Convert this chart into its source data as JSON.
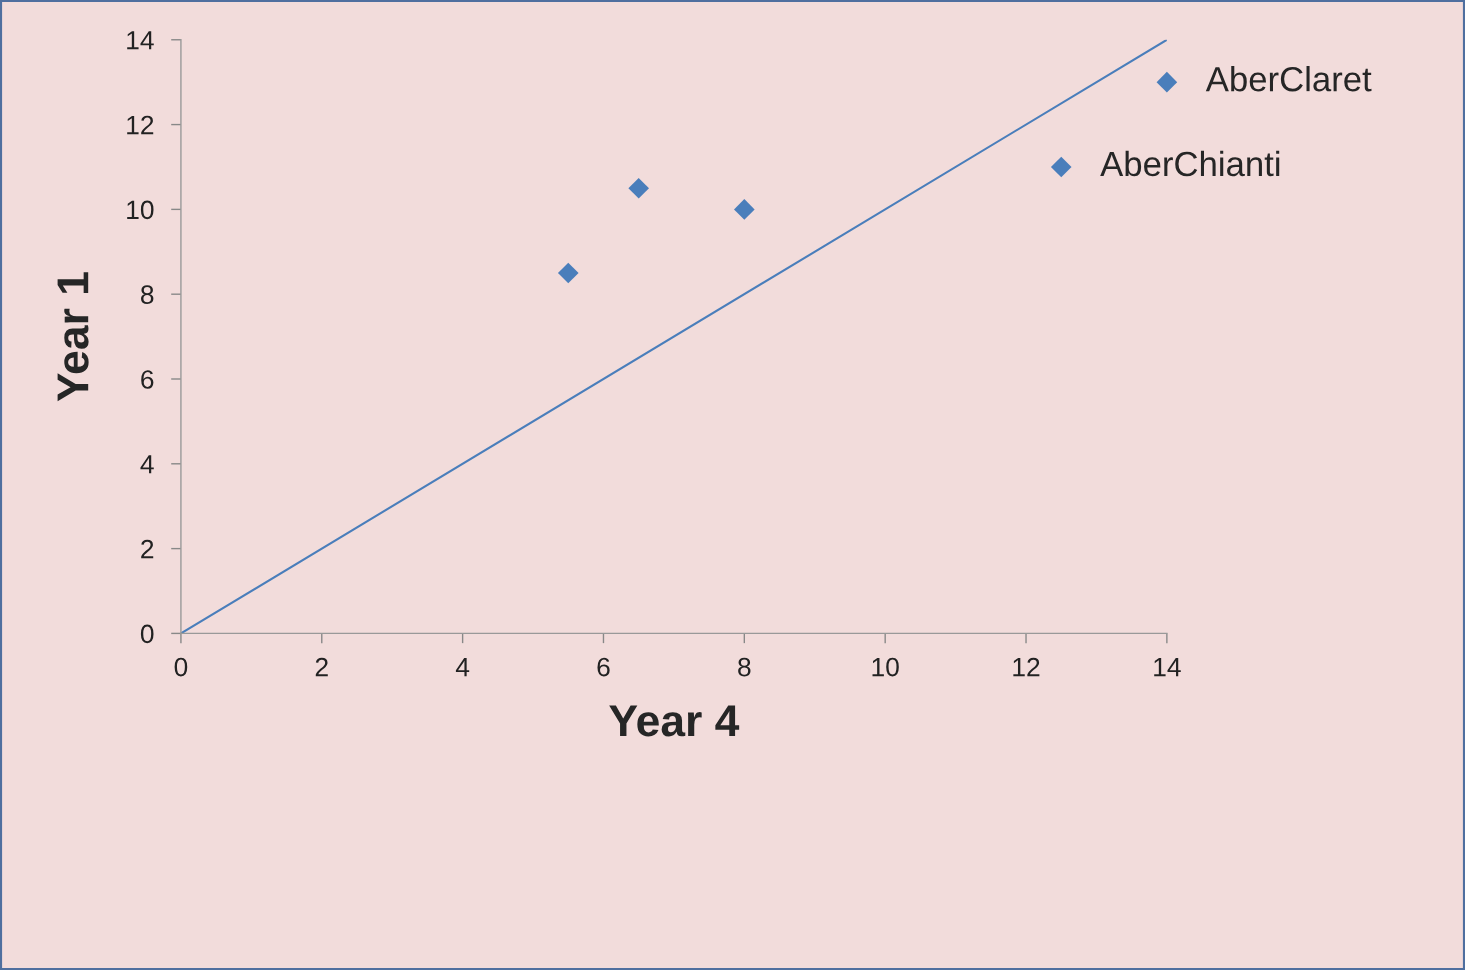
{
  "chart_data": {
    "type": "scatter",
    "xlabel": "Year 4",
    "ylabel": "Year 1",
    "xlim": [
      0,
      14
    ],
    "ylim": [
      0,
      14
    ],
    "xticks": [
      0,
      2,
      4,
      6,
      8,
      10,
      12,
      14
    ],
    "yticks": [
      0,
      2,
      4,
      6,
      8,
      10,
      12,
      14
    ],
    "grid": false,
    "legend": false,
    "series": [
      {
        "color": "#4a7ebb",
        "marker": "diamond",
        "x": [
          5.5,
          6.5,
          8,
          12.5,
          14
        ],
        "values": [
          8.5,
          10.5,
          10,
          11,
          13
        ]
      },
      {
        "type": "line",
        "color": "#4a7ebb",
        "marker": "none",
        "line_style": "solid",
        "x": [
          0,
          14
        ],
        "values": [
          0,
          14
        ]
      }
    ],
    "annotations": [
      {
        "text": "AberClaret",
        "x": 14,
        "y": 13
      },
      {
        "text": "AberChianti",
        "x": 12.5,
        "y": 11
      }
    ]
  }
}
